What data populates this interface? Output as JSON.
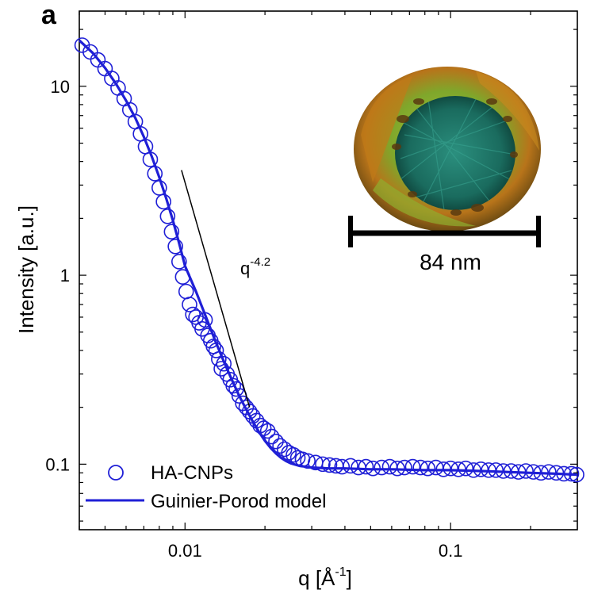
{
  "chart_data": {
    "type": "scatter",
    "panel_label": "a",
    "xlabel_main": "q [Å",
    "xlabel_sup": "-1",
    "xlabel_end": "]",
    "ylabel": "Intensity [a.u.]",
    "xscale": "log",
    "yscale": "log",
    "xlim": [
      0.004,
      0.3
    ],
    "ylim": [
      0.045,
      25
    ],
    "x_ticks": [
      {
        "value": 0.01,
        "label": "0.01"
      },
      {
        "value": 0.1,
        "label": "0.1"
      }
    ],
    "y_ticks": [
      {
        "value": 0.1,
        "label": "0.1"
      },
      {
        "value": 1,
        "label": "1"
      },
      {
        "value": 10,
        "label": "10"
      }
    ],
    "legend": {
      "position": "bottom-left",
      "entries": [
        "HA-CNPs",
        "Guinier-Porod model"
      ]
    },
    "annotation": {
      "base": "q",
      "exponent": "-4.2",
      "line_start": [
        0.0097,
        3.6
      ],
      "line_end": [
        0.0175,
        0.2
      ]
    },
    "inset": {
      "description_label": "84 nm"
    },
    "series": [
      {
        "name": "HA-CNPs",
        "marker": "open-circle",
        "color": "#1f1fd6",
        "x": [
          0.0041,
          0.0044,
          0.0047,
          0.005,
          0.0053,
          0.0056,
          0.0059,
          0.0062,
          0.0065,
          0.0068,
          0.0071,
          0.0074,
          0.0077,
          0.008,
          0.0083,
          0.0086,
          0.0089,
          0.0092,
          0.0095,
          0.0098,
          0.0101,
          0.0104,
          0.0107,
          0.011,
          0.0113,
          0.0116,
          0.0119,
          0.0122,
          0.0125,
          0.0128,
          0.0131,
          0.0134,
          0.0137,
          0.014,
          0.0144,
          0.0148,
          0.0152,
          0.0156,
          0.016,
          0.0165,
          0.017,
          0.0175,
          0.018,
          0.0186,
          0.0192,
          0.0198,
          0.0205,
          0.0212,
          0.022,
          0.0228,
          0.0237,
          0.0246,
          0.0256,
          0.0266,
          0.0277,
          0.029,
          0.031,
          0.033,
          0.035,
          0.037,
          0.039,
          0.042,
          0.045,
          0.048,
          0.051,
          0.055,
          0.059,
          0.063,
          0.067,
          0.072,
          0.077,
          0.082,
          0.088,
          0.094,
          0.1,
          0.107,
          0.114,
          0.122,
          0.13,
          0.139,
          0.148,
          0.158,
          0.169,
          0.18,
          0.192,
          0.205,
          0.219,
          0.234,
          0.25,
          0.267,
          0.285,
          0.298
        ],
        "y": [
          16.5,
          15.2,
          13.8,
          12.4,
          11.0,
          9.8,
          8.6,
          7.5,
          6.5,
          5.6,
          4.8,
          4.1,
          3.45,
          2.9,
          2.45,
          2.05,
          1.7,
          1.42,
          1.18,
          0.98,
          0.82,
          0.7,
          0.62,
          0.6,
          0.56,
          0.52,
          0.58,
          0.48,
          0.45,
          0.42,
          0.4,
          0.36,
          0.32,
          0.34,
          0.3,
          0.28,
          0.26,
          0.25,
          0.23,
          0.21,
          0.2,
          0.19,
          0.18,
          0.17,
          0.16,
          0.155,
          0.15,
          0.14,
          0.132,
          0.125,
          0.12,
          0.115,
          0.112,
          0.108,
          0.106,
          0.104,
          0.102,
          0.1,
          0.099,
          0.098,
          0.097,
          0.098,
          0.096,
          0.097,
          0.095,
          0.096,
          0.097,
          0.095,
          0.096,
          0.097,
          0.096,
          0.095,
          0.096,
          0.094,
          0.095,
          0.094,
          0.095,
          0.093,
          0.094,
          0.093,
          0.093,
          0.092,
          0.092,
          0.091,
          0.092,
          0.091,
          0.09,
          0.091,
          0.09,
          0.089,
          0.089,
          0.088
        ]
      },
      {
        "name": "Guinier-Porod model",
        "marker": "line",
        "color": "#1f1fd6",
        "x": [
          0.004,
          0.0045,
          0.005,
          0.0055,
          0.006,
          0.0065,
          0.007,
          0.0075,
          0.008,
          0.0085,
          0.009,
          0.0095,
          0.01,
          0.011,
          0.012,
          0.013,
          0.014,
          0.015,
          0.016,
          0.017,
          0.018,
          0.019,
          0.02,
          0.021,
          0.022,
          0.023,
          0.024,
          0.025,
          0.027,
          0.03,
          0.035,
          0.04,
          0.05,
          0.06,
          0.08,
          0.1,
          0.13,
          0.16,
          0.2,
          0.25,
          0.3
        ],
        "y": [
          17.5,
          15.0,
          12.5,
          10.3,
          8.4,
          6.8,
          5.4,
          4.25,
          3.3,
          2.55,
          1.95,
          1.48,
          1.12,
          0.82,
          0.6,
          0.45,
          0.35,
          0.28,
          0.23,
          0.195,
          0.168,
          0.148,
          0.133,
          0.122,
          0.114,
          0.108,
          0.104,
          0.101,
          0.098,
          0.096,
          0.095,
          0.095,
          0.094,
          0.094,
          0.093,
          0.093,
          0.092,
          0.091,
          0.09,
          0.089,
          0.088
        ]
      }
    ]
  }
}
